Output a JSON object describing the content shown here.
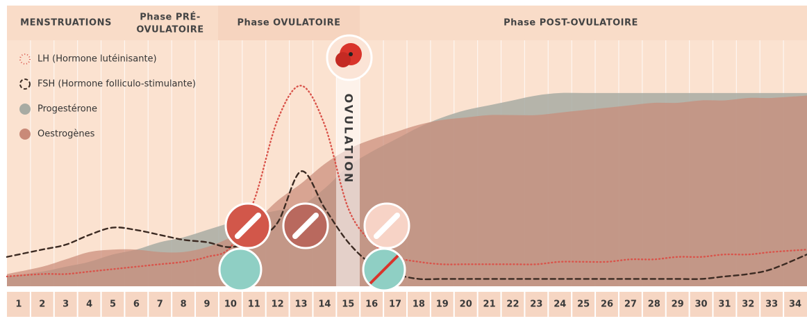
{
  "chart_data": {
    "type": "line",
    "phases": [
      "MENSTRUATIONS",
      "Phase PRÉ-",
      "OVULATOIRE",
      "Phase OVULATOIRE",
      "Phase POST-OVULATOIRE"
    ],
    "annotation": "OVULATION",
    "categories": [
      "1",
      "2",
      "3",
      "4",
      "5",
      "6",
      "7",
      "8",
      "9",
      "10",
      "11",
      "12",
      "13",
      "14",
      "15",
      "16",
      "17",
      "18",
      "19",
      "20",
      "21",
      "22",
      "23",
      "24",
      "25",
      "26",
      "27",
      "28",
      "29",
      "30",
      "31",
      "32",
      "33",
      "34"
    ],
    "ylim": [
      0,
      100
    ],
    "series": [
      {
        "name": "LH (Hormone lutéinisante)",
        "color": "#d9534a",
        "style": "dotted",
        "values": [
          4,
          5,
          5,
          6,
          7,
          8,
          9,
          10,
          12,
          16,
          35,
          68,
          82,
          66,
          32,
          18,
          12,
          10,
          9,
          9,
          9,
          9,
          9,
          10,
          10,
          10,
          11,
          11,
          12,
          12,
          13,
          13,
          14,
          15
        ]
      },
      {
        "name": "FSH (Hormone folliculo-stimulante)",
        "color": "#3b2a22",
        "style": "dashed",
        "values": [
          12,
          15,
          17,
          21,
          24,
          23,
          21,
          19,
          18,
          16,
          19,
          26,
          47,
          32,
          18,
          9,
          5,
          3,
          3,
          3,
          3,
          3,
          3,
          3,
          3,
          3,
          3,
          3,
          3,
          3,
          4,
          5,
          7,
          13
        ]
      },
      {
        "name": "Progestérone",
        "color": "#a8aba3",
        "style": "area",
        "values": [
          4,
          6,
          8,
          10,
          13,
          15,
          18,
          20,
          23,
          26,
          29,
          31,
          33,
          40,
          49,
          55,
          60,
          65,
          69,
          72,
          74,
          76,
          78,
          79,
          79,
          79,
          79,
          79,
          79,
          79,
          79,
          79,
          79,
          79
        ]
      },
      {
        "name": "Oestrogènes",
        "color": "#c98a78",
        "style": "area",
        "values": [
          5,
          8,
          11,
          14,
          15,
          15,
          14,
          14,
          16,
          20,
          26,
          35,
          42,
          50,
          56,
          60,
          63,
          66,
          68,
          69,
          70,
          70,
          70,
          71,
          72,
          73,
          74,
          75,
          75,
          76,
          76,
          77,
          77,
          78
        ]
      }
    ]
  }
}
